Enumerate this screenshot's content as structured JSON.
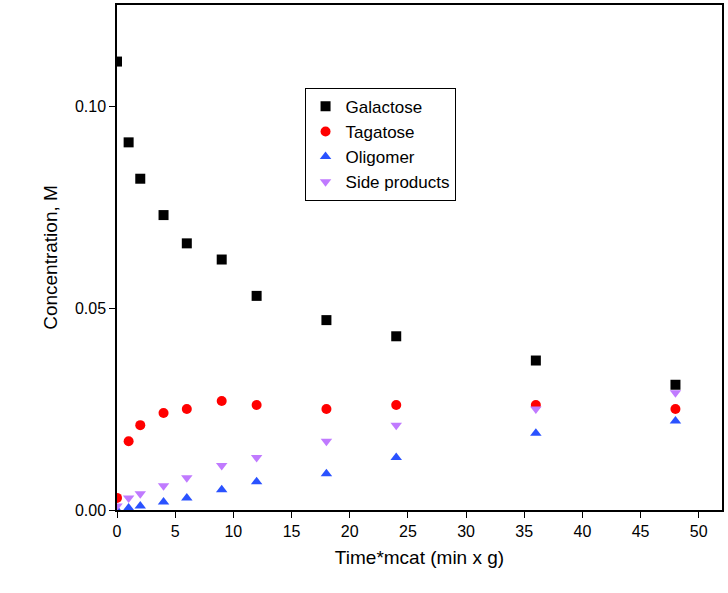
{
  "chart_data": {
    "type": "scatter",
    "x_label": "Time*mcat (min x g)",
    "y_label": "Concentration, M",
    "x": [
      0,
      1,
      2,
      4,
      6,
      9,
      12,
      18,
      24,
      36,
      48
    ],
    "series": [
      {
        "name": "Galactose",
        "color": "#000000",
        "marker": "square",
        "values": [
          0.111,
          0.091,
          0.082,
          0.073,
          0.066,
          0.062,
          0.053,
          0.047,
          0.043,
          0.037,
          0.031
        ]
      },
      {
        "name": "Tagatose",
        "color": "#ff0000",
        "marker": "circle",
        "values": [
          0.003,
          0.017,
          0.021,
          0.024,
          0.025,
          0.027,
          0.026,
          0.025,
          0.026,
          0.026,
          0.025
        ]
      },
      {
        "name": "Oligomer",
        "color": "#2a52ff",
        "marker": "triangle-up",
        "values": [
          0.0,
          0.0005,
          0.001,
          0.002,
          0.003,
          0.005,
          0.007,
          0.009,
          0.013,
          0.019,
          0.022
        ]
      },
      {
        "name": "Side products",
        "color": "#c07aff",
        "marker": "triangle-down",
        "values": [
          0.001,
          0.003,
          0.004,
          0.006,
          0.008,
          0.011,
          0.013,
          0.017,
          0.021,
          0.025,
          0.029
        ]
      }
    ],
    "xlim": [
      0,
      52
    ],
    "xticks": [
      0,
      5,
      10,
      15,
      20,
      25,
      30,
      35,
      40,
      45,
      50
    ],
    "ylim": [
      0,
      0.125
    ],
    "yticks": [
      {
        "value": 0,
        "label": "0.00"
      },
      {
        "value": 0.05,
        "label": "0.05"
      },
      {
        "value": 0.1,
        "label": "0.10"
      }
    ],
    "grid": false,
    "legend": "upper center"
  }
}
